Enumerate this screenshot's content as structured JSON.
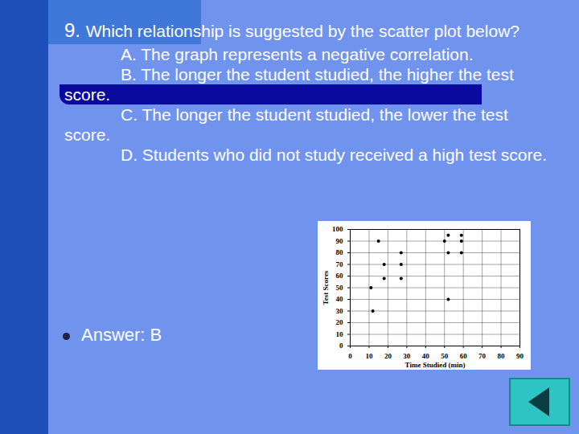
{
  "slide": {
    "number": "9.",
    "question": "Which relationship is suggested by the scatter plot below?",
    "options": [
      "A. The graph represents a negative correlation.",
      "B. The longer the student studied, the higher the test score.",
      "C. The longer the student studied, the lower the test score.",
      "D. Students who did not study received a high test score."
    ],
    "answer": "Answer: B"
  },
  "chart_data": {
    "type": "scatter",
    "x_label": "Time Studied (min)",
    "y_label": "Test Scores",
    "x": [
      11,
      12,
      15,
      18,
      18,
      27,
      27,
      27,
      50,
      52,
      52,
      52,
      59,
      59,
      59
    ],
    "values": [
      50,
      30,
      90,
      70,
      58,
      80,
      70,
      58,
      90,
      95,
      80,
      40,
      95,
      90,
      80
    ],
    "xlim": [
      0,
      90
    ],
    "ylim": [
      0,
      100
    ],
    "xticks": [
      0,
      10,
      20,
      30,
      40,
      50,
      60,
      70,
      80,
      90
    ],
    "yticks": [
      0,
      10,
      20,
      30,
      40,
      50,
      60,
      70,
      80,
      90,
      100
    ],
    "grid": true,
    "marker": "circle",
    "color": "#000000"
  }
}
